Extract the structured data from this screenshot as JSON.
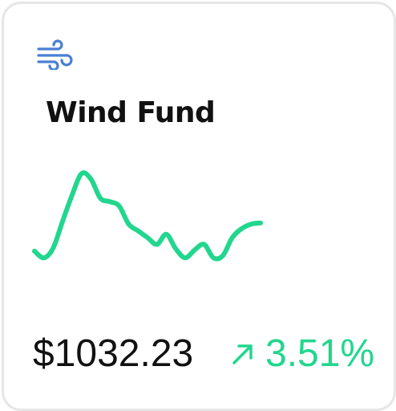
{
  "fund": {
    "icon": "wind-icon",
    "name": "Wind Fund",
    "price": "$1032.23",
    "change_direction": "up",
    "change": "3.51%"
  },
  "colors": {
    "accent": "#22d68e",
    "icon": "#4a7fd4",
    "text": "#111111",
    "border": "#e6e6e6"
  },
  "chart_data": {
    "type": "line",
    "values": [
      0.28,
      0.22,
      0.31,
      0.55,
      0.78,
      0.97,
      0.92,
      0.75,
      0.72,
      0.68,
      0.52,
      0.46,
      0.4,
      0.34,
      0.43,
      0.3,
      0.22,
      0.29,
      0.34,
      0.22,
      0.24,
      0.4,
      0.48,
      0.52,
      0.53
    ]
  }
}
